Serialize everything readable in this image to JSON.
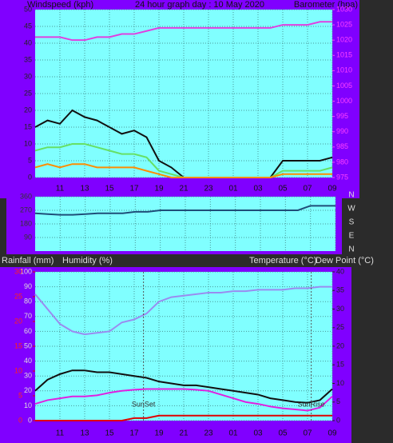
{
  "chart_data": [
    {
      "type": "line",
      "title": "24 hour graph day : 10 May 2020",
      "y_label": "Windspeed (kph)",
      "y2_label": "Barometer (hpa)",
      "x": [
        0,
        1,
        2,
        3,
        4,
        5,
        6,
        7,
        8,
        9,
        10,
        11,
        12,
        13,
        14,
        15,
        16,
        17,
        18,
        19,
        20,
        21,
        22,
        23,
        24
      ],
      "xlim": [
        0,
        24
      ],
      "xticks": [
        {
          "value": 2,
          "label": "11"
        },
        {
          "value": 4,
          "label": "13"
        },
        {
          "value": 6,
          "label": "15"
        },
        {
          "value": 8,
          "label": "17"
        },
        {
          "value": 10,
          "label": "19"
        },
        {
          "value": 12,
          "label": "21"
        },
        {
          "value": 14,
          "label": "23"
        },
        {
          "value": 16,
          "label": "01"
        },
        {
          "value": 18,
          "label": "03"
        },
        {
          "value": 20,
          "label": "05"
        },
        {
          "value": 22,
          "label": "07"
        },
        {
          "value": 24,
          "label": "09"
        }
      ],
      "ylim": [
        0,
        50
      ],
      "yticks": [
        0,
        5,
        10,
        15,
        20,
        25,
        30,
        35,
        40,
        45,
        50
      ],
      "y2lim": [
        975,
        1030
      ],
      "y2ticks": [
        975,
        980,
        985,
        990,
        995,
        1000,
        1005,
        1010,
        1015,
        1020,
        1025,
        1030
      ],
      "grid": true,
      "series": [
        {
          "color": "#111111",
          "values": [
            15,
            17,
            16,
            20,
            18,
            17,
            15,
            13,
            14,
            12,
            5,
            3,
            0,
            0,
            0,
            0,
            0,
            0,
            0,
            0,
            5,
            5,
            5,
            5,
            6
          ]
        },
        {
          "color": "#66e066",
          "values": [
            8,
            9,
            9,
            10,
            10,
            9,
            8,
            7,
            7,
            6,
            2,
            1,
            0,
            0,
            0,
            0,
            0,
            0,
            0,
            0,
            2,
            2,
            2,
            2,
            3
          ]
        },
        {
          "color": "#ff8c00",
          "values": [
            3,
            4,
            3,
            4,
            4,
            3,
            3,
            3,
            3,
            2,
            1,
            0,
            0,
            0,
            0,
            0,
            0,
            0,
            0,
            0,
            1,
            1,
            1,
            1,
            1
          ]
        },
        {
          "color": "#e040e0",
          "axis": "y2",
          "values": [
            1021,
            1021,
            1021,
            1020,
            1020,
            1021,
            1021,
            1022,
            1022,
            1023,
            1024,
            1024,
            1024,
            1024,
            1024,
            1024,
            1024,
            1024,
            1024,
            1024,
            1025,
            1025,
            1025,
            1026,
            1026
          ]
        }
      ]
    },
    {
      "type": "line",
      "x": [
        0,
        1,
        2,
        3,
        4,
        5,
        6,
        7,
        8,
        9,
        10,
        11,
        12,
        13,
        14,
        15,
        16,
        17,
        18,
        19,
        20,
        21,
        22,
        23,
        24
      ],
      "xlim": [
        0,
        24
      ],
      "ylim": [
        0,
        360
      ],
      "yticks": [
        90,
        180,
        270,
        360
      ],
      "grid": true,
      "direction_labels": [
        "N",
        "W",
        "S",
        "E",
        "N"
      ],
      "series": [
        {
          "color": "#1f4e79",
          "values": [
            250,
            245,
            240,
            240,
            245,
            250,
            250,
            250,
            260,
            260,
            270,
            270,
            270,
            270,
            270,
            270,
            270,
            270,
            270,
            270,
            270,
            270,
            300,
            300,
            300
          ]
        }
      ]
    },
    {
      "type": "line",
      "y_label": "Rainfall (mm)",
      "y_label_2": "Humidity (%)",
      "y2_label": "Temperature (°C)",
      "y2_label_2": "Dew Point (°C)",
      "x": [
        0,
        1,
        2,
        3,
        4,
        5,
        6,
        7,
        8,
        9,
        10,
        11,
        12,
        13,
        14,
        15,
        16,
        17,
        18,
        19,
        20,
        21,
        22,
        23,
        24
      ],
      "xlim": [
        0,
        24
      ],
      "xticks": [
        {
          "value": 2,
          "label": "11"
        },
        {
          "value": 4,
          "label": "13"
        },
        {
          "value": 6,
          "label": "15"
        },
        {
          "value": 8,
          "label": "17"
        },
        {
          "value": 10,
          "label": "19"
        },
        {
          "value": 12,
          "label": "21"
        },
        {
          "value": 14,
          "label": "23"
        },
        {
          "value": 16,
          "label": "01"
        },
        {
          "value": 18,
          "label": "03"
        },
        {
          "value": 20,
          "label": "05"
        },
        {
          "value": 22,
          "label": "07"
        },
        {
          "value": 24,
          "label": "09"
        }
      ],
      "ylim": [
        0,
        100
      ],
      "yticks": [
        0,
        10,
        20,
        30,
        40,
        50,
        60,
        70,
        80,
        90,
        100
      ],
      "rain_lim": [
        0,
        30
      ],
      "rain_ticks": [
        0,
        5,
        10,
        15,
        20,
        25,
        30
      ],
      "y2lim": [
        0,
        40
      ],
      "y2ticks": [
        0,
        5,
        10,
        15,
        20,
        25,
        30,
        35,
        40
      ],
      "grid": true,
      "annotations": [
        {
          "text": "SunSet",
          "x": 8.75
        },
        {
          "text": "SunRise",
          "x": 22.3
        }
      ],
      "series": [
        {
          "color": "#9a8cf0",
          "values": [
            85,
            75,
            65,
            60,
            58,
            59,
            60,
            66,
            68,
            72,
            80,
            83,
            84,
            85,
            86,
            86,
            87,
            87,
            88,
            88,
            88,
            89,
            89,
            90,
            90
          ]
        },
        {
          "color": "#111111",
          "axis": "y2",
          "values": [
            8,
            11,
            12.5,
            13.5,
            13.5,
            13,
            13,
            12.5,
            12,
            11.5,
            10.5,
            10,
            9.5,
            9.5,
            9,
            8.5,
            8,
            7.5,
            7,
            6,
            5.5,
            5,
            4.8,
            5.5,
            8.5
          ]
        },
        {
          "color": "#e020e0",
          "axis": "y2",
          "values": [
            4.5,
            5.5,
            6,
            6.5,
            6.5,
            6.8,
            7.5,
            8,
            8.3,
            8.5,
            8.5,
            8.5,
            8.5,
            8.3,
            8,
            7,
            6,
            5,
            4.5,
            3.8,
            3.3,
            3,
            2.7,
            3.5,
            6.5
          ]
        },
        {
          "color": "#e00000",
          "axis": "rain",
          "values": [
            0,
            0,
            0,
            0,
            0,
            0,
            0,
            0,
            0.5,
            0.5,
            1,
            1,
            1,
            1,
            1,
            1,
            1,
            1,
            1,
            1,
            1,
            1,
            1,
            1,
            1
          ]
        }
      ]
    }
  ]
}
